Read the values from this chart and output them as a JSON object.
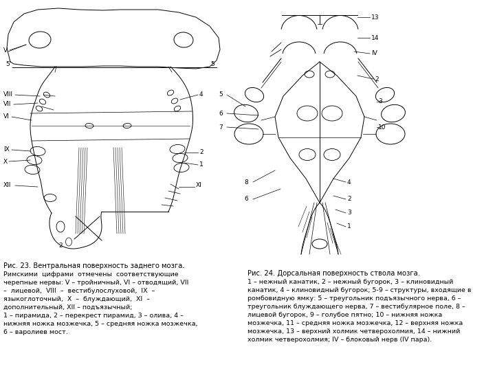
{
  "fig_width": 7.2,
  "fig_height": 5.4,
  "dpi": 100,
  "bg_color": "#ffffff",
  "caption_left": {
    "title": "Рис. 23. Вентральная поверхность заднего мозга.",
    "lines": [
      "Римскими  цифрами  отмечены  соответствующие",
      "черепные нервы: V – тройничный, VI – отводящий, VII",
      "–  лицевой,  VIII  –  вестибулослуховой,  IX  –",
      "языкоглоточный,  X  –  блуждающий,  XI  –",
      "дополнительный, XII – подъязычный;",
      "1 – пирамида, 2 – перекрест пирамид, 3 – олива, 4 –",
      "нижняя ножка мозжечка, 5 – средняя ножка мозжечка,",
      "6 – варолиев мост."
    ]
  },
  "caption_right": {
    "title": "Рис. 24. Дорсальная поверхность ствола мозга.",
    "lines": [
      "1 – нежный канатик, 2 – нежный бугорок, 3 – клиновидный",
      "канатик, 4 – клиновидный бугорок; 5-9 – структуры, входящие в",
      "ромбовидную ямку: 5 – треугольник подъязычного нерва, 6 –",
      "треугольник блуждающего нерва, 7 – вестибулярное поле, 8 –",
      "лицевой бугорок, 9 – голубое пятно; 10 – нижняя ножка",
      "мозжечка, 11 – средняя ножка мозжечка, 12 – верхняя ножка",
      "мозжечка, 13 – верхний холмик четверохолмия, 14 – нижний",
      "холмик четверохолмия; IV – блоковый нерв (IV пара)."
    ]
  }
}
